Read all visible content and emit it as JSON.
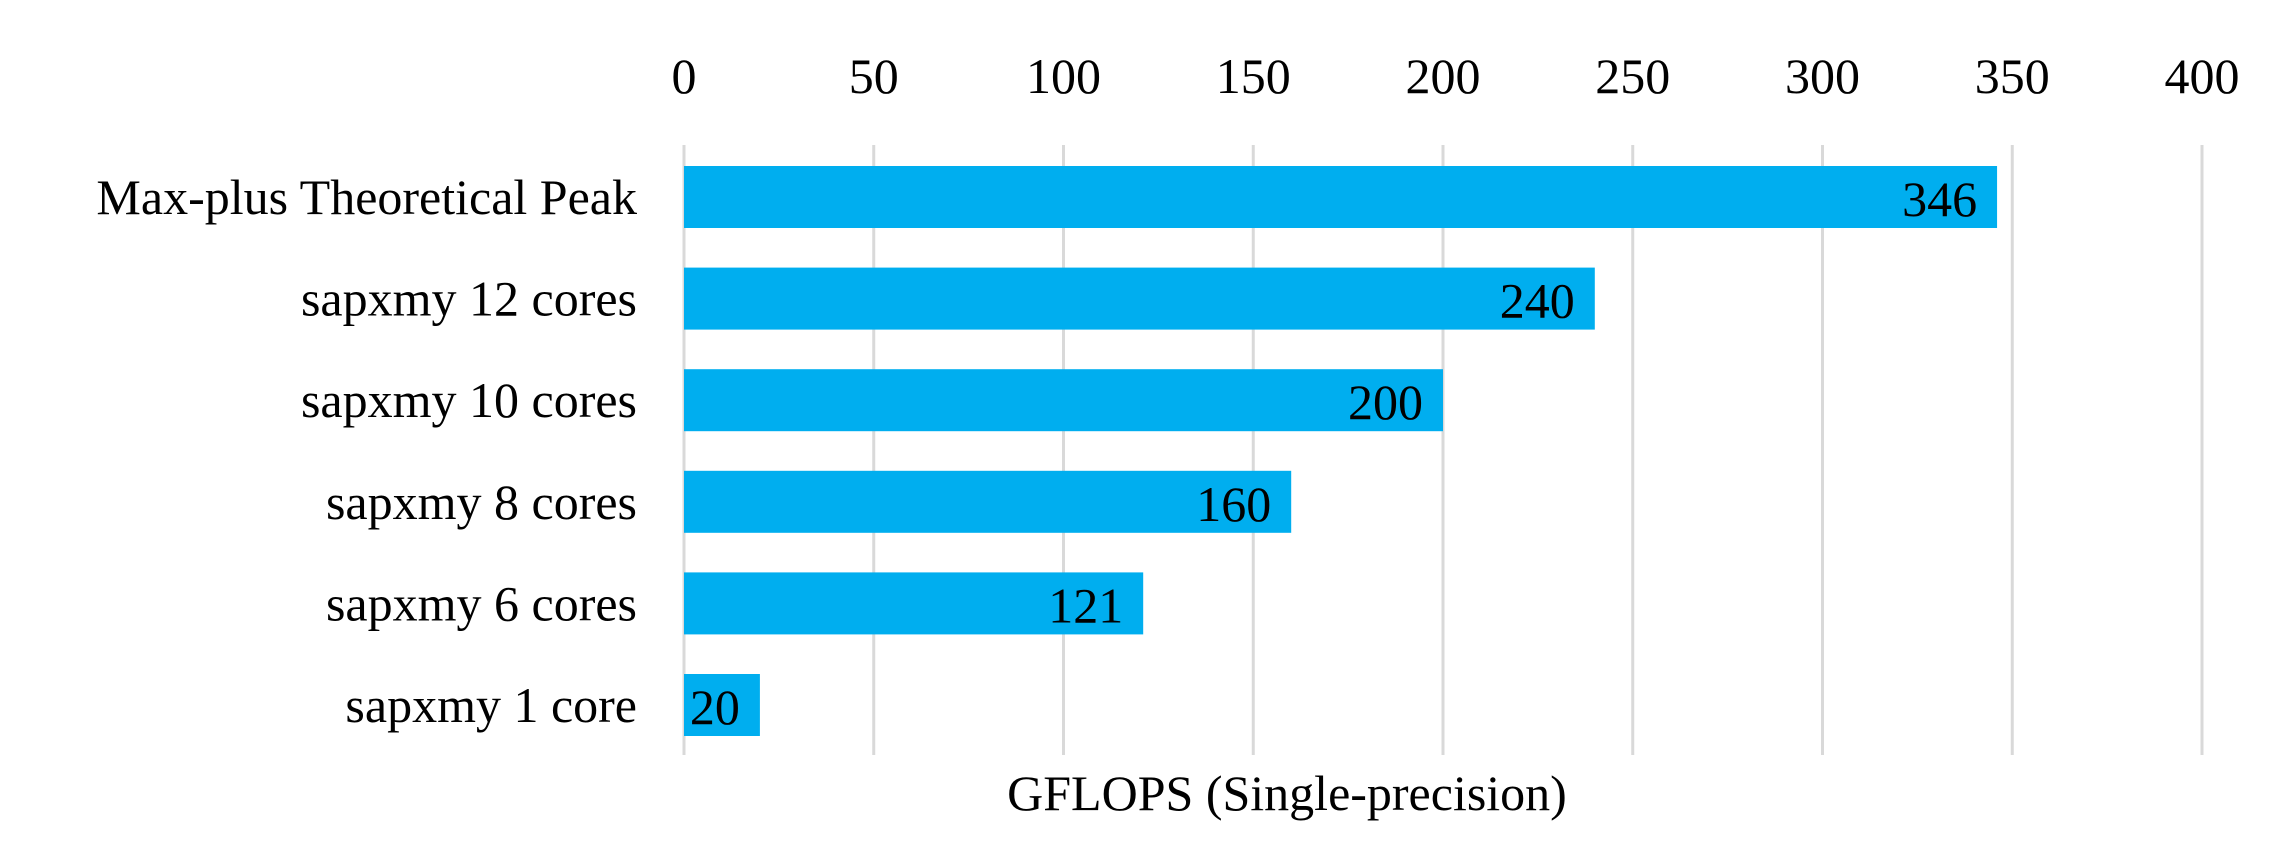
{
  "chart_data": {
    "type": "bar",
    "orientation": "horizontal",
    "categories": [
      "Max-plus Theoretical Peak",
      "sapxmy 12 cores",
      "sapxmy 10 cores",
      "sapxmy 8 cores",
      "sapxmy 6 cores",
      "sapxmy 1 core"
    ],
    "values": [
      346,
      240,
      200,
      160,
      121,
      20
    ],
    "data_labels": [
      "346",
      "240",
      "200",
      "160",
      "121",
      "20"
    ],
    "title": "",
    "xlabel": "GFLOPS (Single-precision)",
    "ylabel": "",
    "xlim": [
      0,
      400
    ],
    "xticks": [
      0,
      50,
      100,
      150,
      200,
      250,
      300,
      350,
      400
    ],
    "xtick_labels": [
      "0",
      "50",
      "100",
      "150",
      "200",
      "250",
      "300",
      "350",
      "400"
    ],
    "x_axis_position": "top",
    "grid": true,
    "legend": "none",
    "bar_color": "#00AEEF",
    "grid_color": "#D9D9D9"
  }
}
